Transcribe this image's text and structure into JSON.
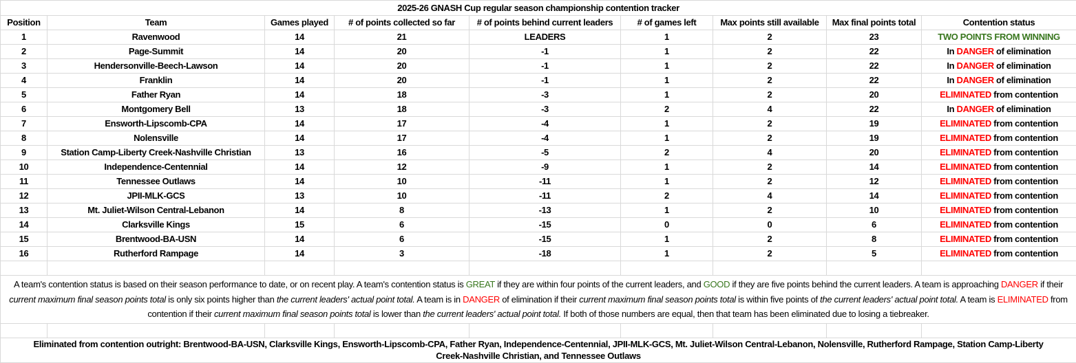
{
  "title": "2025-26 GNASH Cup regular season championship contention tracker",
  "colors": {
    "danger": "#ff0000",
    "good": "#38761d",
    "grid": "#d9d9d9"
  },
  "headers": [
    "Position",
    "Team",
    "Games played",
    "# of points collected so far",
    "# of points behind current leaders",
    "# of games left",
    "Max points still available",
    "Max final points total",
    "Contention status"
  ],
  "rows": [
    {
      "cells": [
        "1",
        "Ravenwood",
        "14",
        "21",
        "LEADERS",
        "1",
        "2",
        "23"
      ],
      "status": {
        "pre": "",
        "hl": "TWO POINTS FROM WINNING",
        "post": "",
        "color": "green"
      }
    },
    {
      "cells": [
        "2",
        "Page-Summit",
        "14",
        "20",
        "-1",
        "1",
        "2",
        "22"
      ],
      "status": {
        "pre": "In ",
        "hl": "DANGER",
        "post": " of elimination",
        "color": "red"
      }
    },
    {
      "cells": [
        "3",
        "Hendersonville-Beech-Lawson",
        "14",
        "20",
        "-1",
        "1",
        "2",
        "22"
      ],
      "status": {
        "pre": "In ",
        "hl": "DANGER",
        "post": " of elimination",
        "color": "red"
      }
    },
    {
      "cells": [
        "4",
        "Franklin",
        "14",
        "20",
        "-1",
        "1",
        "2",
        "22"
      ],
      "status": {
        "pre": "In ",
        "hl": "DANGER",
        "post": " of elimination",
        "color": "red"
      }
    },
    {
      "cells": [
        "5",
        "Father Ryan",
        "14",
        "18",
        "-3",
        "1",
        "2",
        "20"
      ],
      "status": {
        "pre": "",
        "hl": "ELIMINATED",
        "post": " from contention",
        "color": "red"
      }
    },
    {
      "cells": [
        "6",
        "Montgomery Bell",
        "13",
        "18",
        "-3",
        "2",
        "4",
        "22"
      ],
      "status": {
        "pre": "In ",
        "hl": "DANGER",
        "post": " of elimination",
        "color": "red"
      }
    },
    {
      "cells": [
        "7",
        "Ensworth-Lipscomb-CPA",
        "14",
        "17",
        "-4",
        "1",
        "2",
        "19"
      ],
      "status": {
        "pre": "",
        "hl": "ELIMINATED",
        "post": " from contention",
        "color": "red"
      }
    },
    {
      "cells": [
        "8",
        "Nolensville",
        "14",
        "17",
        "-4",
        "1",
        "2",
        "19"
      ],
      "status": {
        "pre": "",
        "hl": "ELIMINATED",
        "post": " from contention",
        "color": "red"
      }
    },
    {
      "cells": [
        "9",
        "Station Camp-Liberty Creek-Nashville Christian",
        "13",
        "16",
        "-5",
        "2",
        "4",
        "20"
      ],
      "status": {
        "pre": "",
        "hl": "ELIMINATED",
        "post": " from contention",
        "color": "red"
      }
    },
    {
      "cells": [
        "10",
        "Independence-Centennial",
        "14",
        "12",
        "-9",
        "1",
        "2",
        "14"
      ],
      "status": {
        "pre": "",
        "hl": "ELIMINATED",
        "post": " from contention",
        "color": "red"
      }
    },
    {
      "cells": [
        "11",
        "Tennessee Outlaws",
        "14",
        "10",
        "-11",
        "1",
        "2",
        "12"
      ],
      "status": {
        "pre": "",
        "hl": "ELIMINATED",
        "post": " from contention",
        "color": "red"
      }
    },
    {
      "cells": [
        "12",
        "JPII-MLK-GCS",
        "13",
        "10",
        "-11",
        "2",
        "4",
        "14"
      ],
      "status": {
        "pre": "",
        "hl": "ELIMINATED",
        "post": " from contention",
        "color": "red"
      }
    },
    {
      "cells": [
        "13",
        "Mt. Juliet-Wilson Central-Lebanon",
        "14",
        "8",
        "-13",
        "1",
        "2",
        "10"
      ],
      "status": {
        "pre": "",
        "hl": "ELIMINATED",
        "post": " from contention",
        "color": "red"
      }
    },
    {
      "cells": [
        "14",
        "Clarksville Kings",
        "15",
        "6",
        "-15",
        "0",
        "0",
        "6"
      ],
      "status": {
        "pre": "",
        "hl": "ELIMINATED",
        "post": " from contention",
        "color": "red"
      }
    },
    {
      "cells": [
        "15",
        "Brentwood-BA-USN",
        "14",
        "6",
        "-15",
        "1",
        "2",
        "8"
      ],
      "status": {
        "pre": "",
        "hl": "ELIMINATED",
        "post": " from contention",
        "color": "red"
      }
    },
    {
      "cells": [
        "16",
        "Rutherford Rampage",
        "14",
        "3",
        "-18",
        "1",
        "2",
        "5"
      ],
      "status": {
        "pre": "",
        "hl": "ELIMINATED",
        "post": " from contention",
        "color": "red"
      }
    }
  ],
  "note": [
    {
      "t": "A team's contention status is based on their season performance to date, or on recent play. A team's contention status is ",
      "s": ""
    },
    {
      "t": "GREAT",
      "s": "green"
    },
    {
      "t": " if they are within four points of the current leaders, and ",
      "s": ""
    },
    {
      "t": "GOOD",
      "s": "green"
    },
    {
      "t": " if they are five points behind the current leaders. A team is approaching ",
      "s": ""
    },
    {
      "t": "DANGER",
      "s": "red"
    },
    {
      "t": " if their ",
      "s": ""
    },
    {
      "t": "current maximum final season points total",
      "s": "it"
    },
    {
      "t": " is only six points higher than ",
      "s": ""
    },
    {
      "t": "the current leaders' actual point total.",
      "s": "it"
    },
    {
      "t": " A team is in ",
      "s": ""
    },
    {
      "t": "DANGER",
      "s": "red"
    },
    {
      "t": " of elimination if their ",
      "s": ""
    },
    {
      "t": "current maximum final season points total",
      "s": "it"
    },
    {
      "t": " is within five points of ",
      "s": ""
    },
    {
      "t": "the current leaders' actual point total.",
      "s": "it"
    },
    {
      "t": " A team is ",
      "s": ""
    },
    {
      "t": "ELIMINATED",
      "s": "red"
    },
    {
      "t": " from contention if their ",
      "s": ""
    },
    {
      "t": "current maximum final season points total",
      "s": "it"
    },
    {
      "t": " is lower than ",
      "s": ""
    },
    {
      "t": "the current leaders' actual point total.",
      "s": "it"
    },
    {
      "t": " If both of those numbers are equal, then that team has been eliminated due to losing a tiebreaker.",
      "s": ""
    }
  ],
  "footer": "Eliminated from contention outright: Brentwood-BA-USN, Clarksville Kings, Ensworth-Lipscomb-CPA, Father Ryan, Independence-Centennial, JPII-MLK-GCS, Mt. Juliet-Wilson Central-Lebanon, Nolensville, Rutherford Rampage, Station Camp-Liberty Creek-Nashville Christian, and Tennessee Outlaws"
}
